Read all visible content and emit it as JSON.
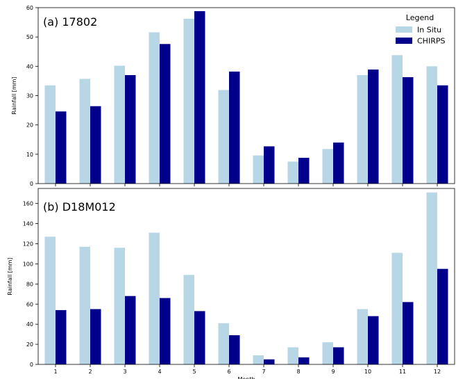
{
  "chart_data": [
    {
      "type": "bar",
      "panel_label": "(a) 17802",
      "ylabel": "Rainfall [mm]",
      "xlabel": "",
      "ylim": [
        0,
        60
      ],
      "yticks": [
        0,
        10,
        20,
        30,
        40,
        50,
        60
      ],
      "categories": [
        "1",
        "2",
        "3",
        "4",
        "5",
        "6",
        "7",
        "8",
        "9",
        "10",
        "11",
        "12"
      ],
      "show_x_tick_labels": false,
      "grid": false,
      "series": [
        {
          "name": "In Situ",
          "color": "#b7d6e6",
          "values": [
            33.5,
            35.7,
            40.2,
            51.6,
            56.2,
            31.9,
            9.6,
            7.5,
            11.8,
            37.0,
            43.8,
            40.0
          ]
        },
        {
          "name": "CHIRPS",
          "color": "#00008b",
          "values": [
            24.6,
            26.4,
            37.0,
            47.6,
            58.8,
            38.2,
            12.7,
            8.8,
            14.0,
            38.9,
            36.3,
            33.5
          ]
        }
      ],
      "legend": {
        "title": "Legend",
        "placement": "top-right"
      }
    },
    {
      "type": "bar",
      "panel_label": "(b) D18M012",
      "ylabel": "Rainfall [mm]",
      "xlabel": "Month",
      "ylim": [
        0,
        175
      ],
      "yticks": [
        0,
        20,
        40,
        60,
        80,
        100,
        120,
        140,
        160
      ],
      "categories": [
        "1",
        "2",
        "3",
        "4",
        "5",
        "6",
        "7",
        "8",
        "9",
        "10",
        "11",
        "12"
      ],
      "show_x_tick_labels": true,
      "grid": false,
      "series": [
        {
          "name": "In Situ",
          "color": "#b7d6e6",
          "values": [
            127,
            117,
            116,
            131,
            89,
            41,
            9,
            17,
            22,
            55,
            111,
            171
          ]
        },
        {
          "name": "CHIRPS",
          "color": "#00008b",
          "values": [
            54,
            55,
            68,
            66,
            53,
            29,
            5,
            7,
            17,
            48,
            62,
            95
          ]
        }
      ]
    }
  ]
}
